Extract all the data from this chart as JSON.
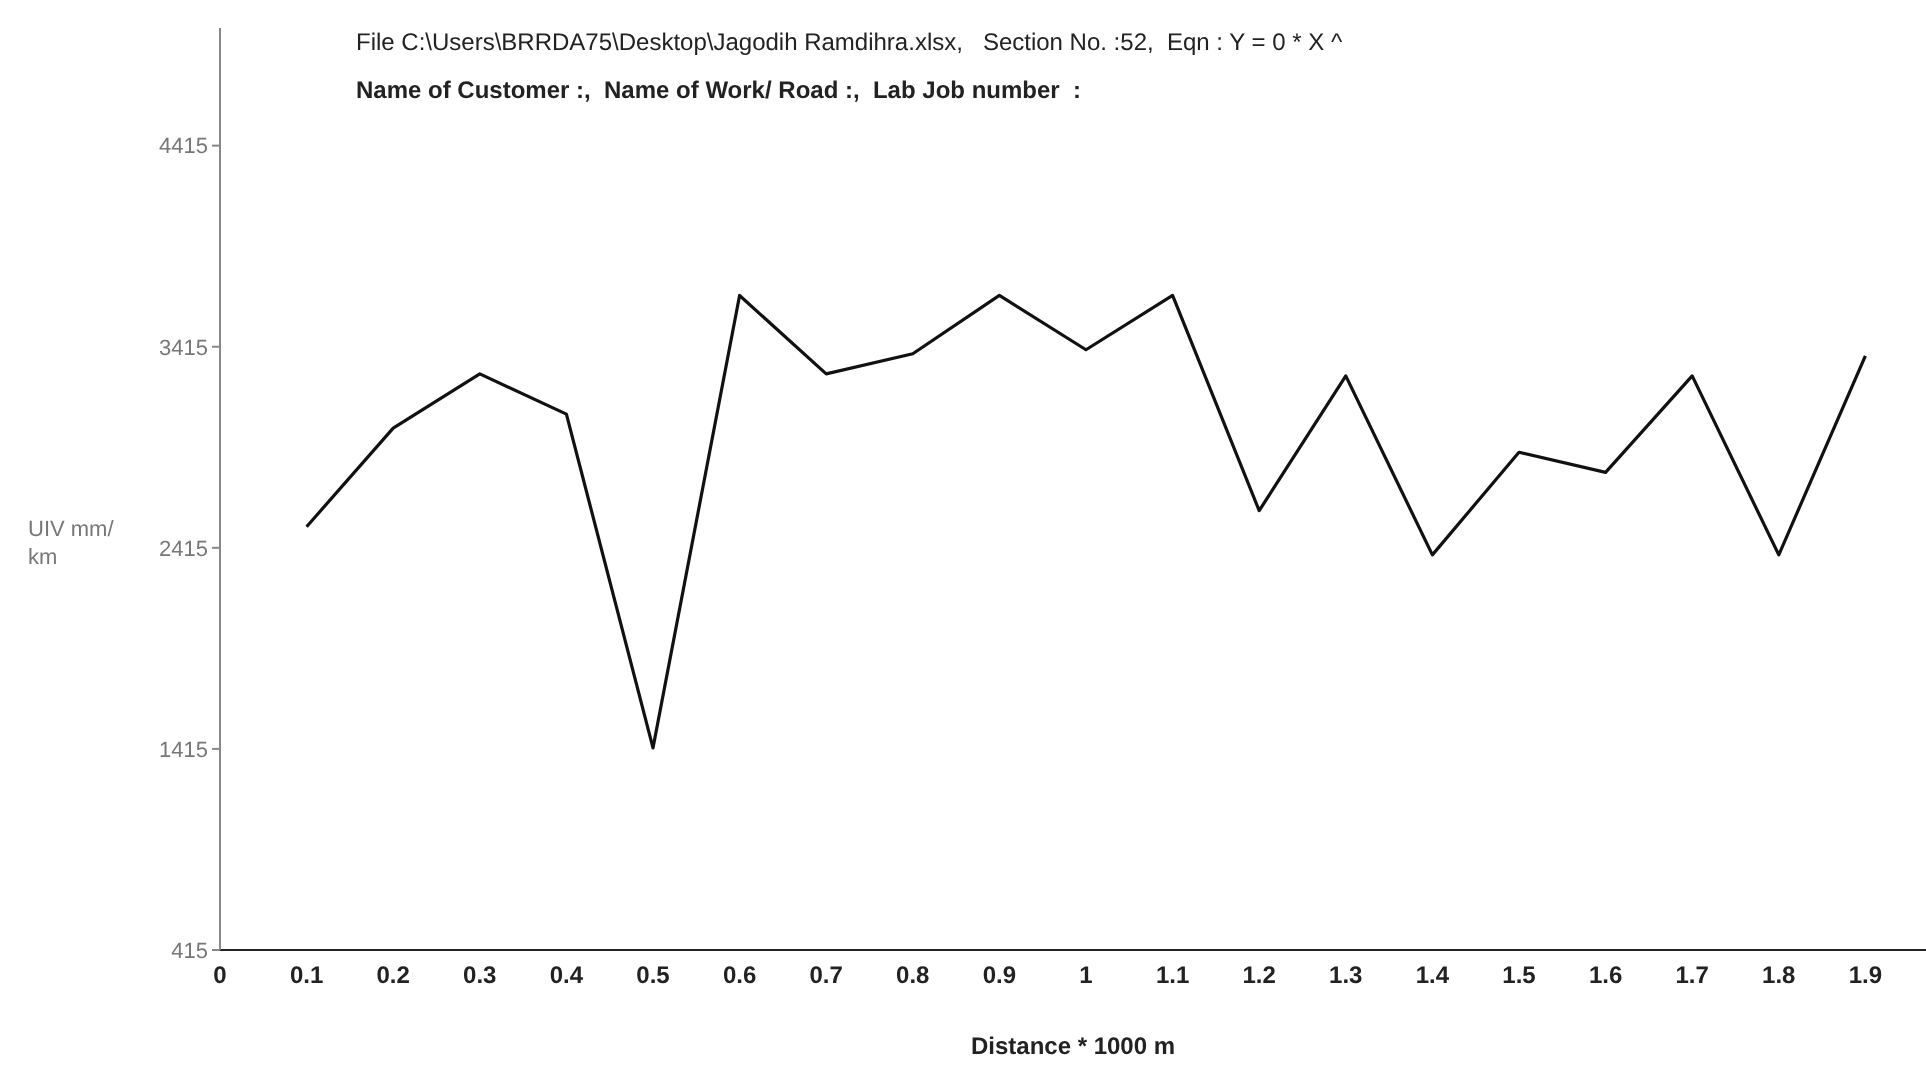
{
  "chart_data": {
    "type": "line",
    "xlabel": "Distance * 1000 m",
    "ylabel": "UIV mm/ km",
    "annotations": [
      "File C:\\Users\\BRRDA75\\Desktop\\Jagodih Ramdihra.xlsx,   Section No. :52,  Eqn : Y = 0 * X ^",
      "Name of Customer :,  Name of Work/ Road :,  Lab Job number  :"
    ],
    "x": [
      0.1,
      0.2,
      0.3,
      0.4,
      0.5,
      0.6,
      0.7,
      0.8,
      0.9,
      1,
      1.1,
      1.2,
      1.3,
      1.4,
      1.5,
      1.6,
      1.7,
      1.8,
      1.9
    ],
    "series": [
      {
        "color": "#111111",
        "values": [
          2520,
          3010,
          3280,
          3080,
          1420,
          3670,
          3280,
          3380,
          3670,
          3400,
          3670,
          2600,
          3270,
          2380,
          2890,
          2790,
          3270,
          2380,
          3370
        ]
      }
    ],
    "xlim": [
      0,
      1.97
    ],
    "xticks": [
      0,
      0.1,
      0.2,
      0.3,
      0.4,
      0.5,
      0.6,
      0.7,
      0.8,
      0.9,
      1,
      1.1,
      1.2,
      1.3,
      1.4,
      1.5,
      1.6,
      1.7,
      1.8,
      1.9
    ],
    "ylim": [
      415,
      5000
    ],
    "yticks": [
      415,
      1415,
      2415,
      3415,
      4415
    ],
    "grid": false,
    "marker": "none",
    "line_style": "solid"
  }
}
